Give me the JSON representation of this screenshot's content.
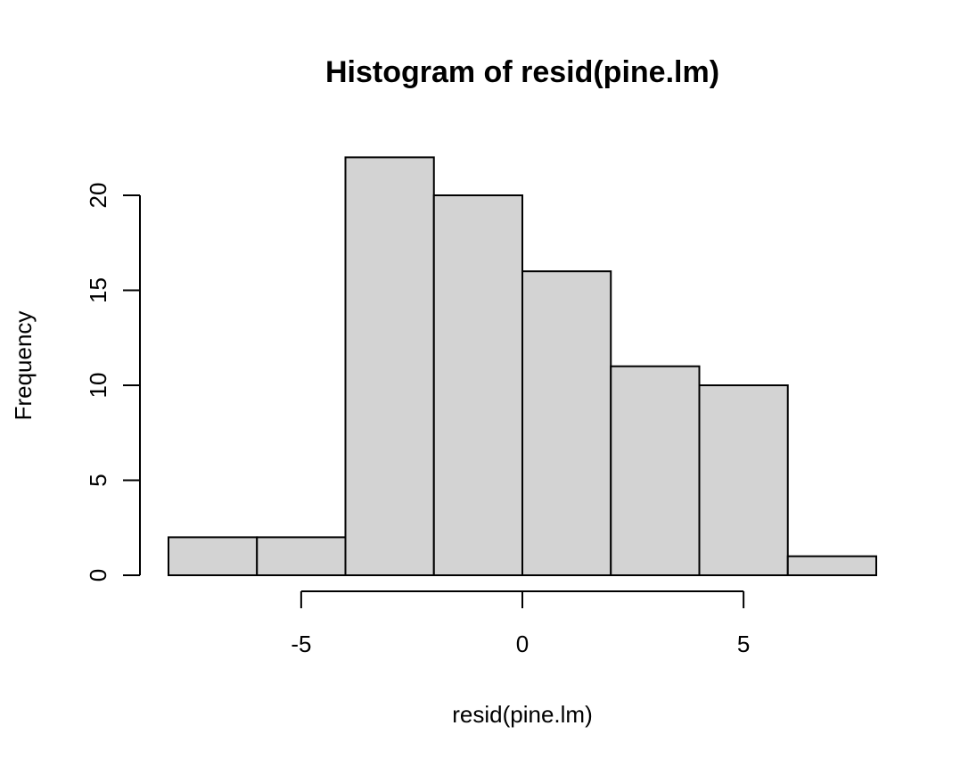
{
  "chart_data": {
    "type": "bar",
    "subtype": "histogram",
    "title": "Histogram of resid(pine.lm)",
    "xlabel": "resid(pine.lm)",
    "ylabel": "Frequency",
    "bins": [
      {
        "x0": -8,
        "x1": -6,
        "count": 2
      },
      {
        "x0": -6,
        "x1": -4,
        "count": 2
      },
      {
        "x0": -4,
        "x1": -2,
        "count": 22
      },
      {
        "x0": -2,
        "x1": 0,
        "count": 20
      },
      {
        "x0": 0,
        "x1": 2,
        "count": 16
      },
      {
        "x0": 2,
        "x1": 4,
        "count": 11
      },
      {
        "x0": 4,
        "x1": 6,
        "count": 10
      },
      {
        "x0": 6,
        "x1": 8,
        "count": 1
      }
    ],
    "xticks": [
      -5,
      0,
      5
    ],
    "xtick_labels": [
      "-5",
      "0",
      "5"
    ],
    "yticks": [
      0,
      5,
      10,
      15,
      20
    ],
    "ytick_labels": [
      "0",
      "5",
      "10",
      "15",
      "20"
    ],
    "xlim": [
      -8,
      8
    ],
    "ylim": [
      0,
      22
    ],
    "bar_fill": "#d3d3d3",
    "bar_edge": "#000000",
    "grid": false,
    "legend": "none"
  }
}
